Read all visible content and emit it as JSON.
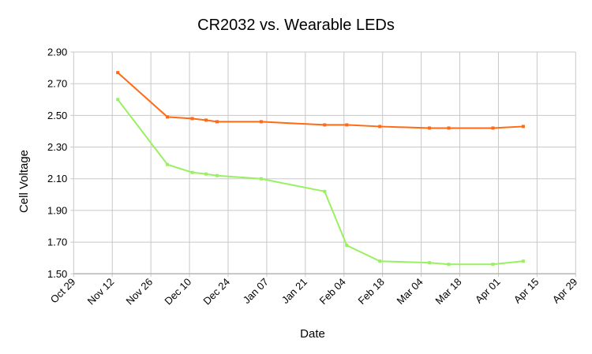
{
  "chart_data": {
    "type": "line",
    "title": "CR2032 vs. Wearable LEDs",
    "xlabel": "Date",
    "ylabel": "Cell Voltage",
    "x_tick_labels": [
      "Oct 29",
      "Nov 12",
      "Nov 26",
      "Dec 10",
      "Dec 24",
      "Jan 07",
      "Jan 21",
      "Feb 04",
      "Feb 18",
      "Mar 04",
      "Mar 18",
      "Apr 01",
      "Apr 15",
      "Apr 29"
    ],
    "xlim": [
      "Oct 29",
      "Apr 29"
    ],
    "ylim": [
      1.5,
      2.9
    ],
    "y_tick_labels": [
      "1.50",
      "1.70",
      "1.90",
      "2.10",
      "2.30",
      "2.50",
      "2.70",
      "2.90"
    ],
    "grid": true,
    "legend": "none",
    "x": [
      "Nov 14",
      "Dec 02",
      "Dec 11",
      "Dec 16",
      "Dec 20",
      "Jan 05",
      "Jan 28",
      "Feb 05",
      "Feb 17",
      "Mar 07",
      "Mar 14",
      "Mar 30",
      "Apr 10"
    ],
    "series": [
      {
        "color": "#ff6a13",
        "values": [
          2.77,
          2.49,
          2.48,
          2.47,
          2.46,
          2.46,
          2.44,
          2.44,
          2.43,
          2.42,
          2.42,
          2.42,
          2.43
        ]
      },
      {
        "color": "#99f060",
        "values": [
          2.6,
          2.19,
          2.14,
          2.13,
          2.12,
          2.1,
          2.02,
          1.68,
          1.58,
          1.57,
          1.56,
          1.56,
          1.58
        ]
      }
    ]
  }
}
